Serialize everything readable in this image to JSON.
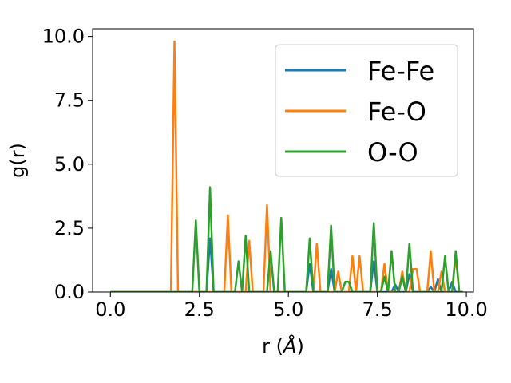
{
  "chart_data": {
    "type": "line",
    "xlabel": "r ($\\AA$)",
    "xlabel_parts": {
      "prefix": "r (",
      "symbol": "Å",
      "suffix": ")"
    },
    "ylabel": "g(r)",
    "xlim": [
      -0.5,
      10.2
    ],
    "ylim": [
      0,
      10.3
    ],
    "xticks": [
      0.0,
      2.5,
      5.0,
      7.5,
      10.0
    ],
    "xtick_labels": [
      "0.0",
      "2.5",
      "5.0",
      "7.5",
      "10.0"
    ],
    "yticks": [
      0.0,
      2.5,
      5.0,
      7.5,
      10.0
    ],
    "ytick_labels": [
      "0.0",
      "2.5",
      "5.0",
      "7.5",
      "10.0"
    ],
    "grid": false,
    "legend_position": "top-right",
    "x": [
      0.0,
      0.1,
      0.2,
      0.3,
      0.4,
      0.5,
      0.6,
      0.7,
      0.8,
      0.9,
      1.0,
      1.1,
      1.2,
      1.3,
      1.4,
      1.5,
      1.6,
      1.7,
      1.8,
      1.9,
      2.0,
      2.1,
      2.2,
      2.3,
      2.4,
      2.5,
      2.6,
      2.7,
      2.8,
      2.9,
      3.0,
      3.1,
      3.2,
      3.3,
      3.4,
      3.5,
      3.6,
      3.7,
      3.8,
      3.9,
      4.0,
      4.1,
      4.2,
      4.3,
      4.4,
      4.5,
      4.6,
      4.7,
      4.8,
      4.9,
      5.0,
      5.1,
      5.2,
      5.3,
      5.4,
      5.5,
      5.6,
      5.7,
      5.8,
      5.9,
      6.0,
      6.1,
      6.2,
      6.3,
      6.4,
      6.5,
      6.6,
      6.7,
      6.8,
      6.9,
      7.0,
      7.1,
      7.2,
      7.3,
      7.4,
      7.5,
      7.6,
      7.7,
      7.8,
      7.9,
      8.0,
      8.1,
      8.2,
      8.3,
      8.4,
      8.5,
      8.6,
      8.7,
      8.8,
      8.9,
      9.0,
      9.1,
      9.2,
      9.3,
      9.4,
      9.5,
      9.6,
      9.7,
      9.8,
      9.9
    ],
    "series": [
      {
        "name": "Fe-Fe",
        "color": "#1f77b4",
        "values": [
          0,
          0,
          0,
          0,
          0,
          0,
          0,
          0,
          0,
          0,
          0,
          0,
          0,
          0,
          0,
          0,
          0,
          0,
          0,
          0,
          0,
          0,
          0,
          0,
          0,
          0,
          0,
          0,
          2.1,
          0,
          0,
          0,
          0,
          0,
          0,
          0,
          0,
          0,
          0,
          0,
          0,
          0,
          0,
          0,
          0,
          0,
          0,
          0,
          0,
          0,
          0,
          0,
          0,
          0,
          0,
          0,
          1.1,
          0,
          0,
          0,
          0,
          0,
          0.9,
          0,
          0,
          0,
          0,
          0,
          0,
          0,
          0,
          0,
          0,
          0,
          1.2,
          0,
          0,
          0,
          0,
          0,
          0.3,
          0,
          0,
          0,
          0.7,
          0,
          0,
          0,
          0,
          0,
          0.2,
          0,
          0.5,
          0,
          0,
          0,
          0.4,
          0,
          0,
          0
        ]
      },
      {
        "name": "Fe-O",
        "color": "#ff7f0e",
        "values": [
          0,
          0,
          0,
          0,
          0,
          0,
          0,
          0,
          0,
          0,
          0,
          0,
          0,
          0,
          0,
          0,
          0,
          0,
          9.8,
          0,
          0,
          0,
          0,
          0,
          0,
          0,
          0,
          0,
          0,
          0,
          0,
          0,
          0,
          3.0,
          0,
          0,
          0,
          0,
          0,
          2.0,
          0,
          0,
          0,
          0,
          3.4,
          0,
          0,
          0,
          0,
          0,
          0,
          0,
          0,
          0,
          0,
          0,
          0,
          0,
          1.9,
          0,
          0,
          0,
          0,
          0,
          0.8,
          0,
          0,
          0,
          1.4,
          0,
          1.4,
          0,
          0,
          0,
          0,
          0,
          0,
          1.1,
          0,
          0,
          0,
          0,
          0.8,
          0,
          0,
          0.9,
          0.9,
          0,
          0,
          0,
          1.6,
          0,
          0,
          0.8,
          0,
          0,
          0,
          1.4,
          0,
          0
        ]
      },
      {
        "name": "O-O",
        "color": "#2ca02c",
        "values": [
          0,
          0,
          0,
          0,
          0,
          0,
          0,
          0,
          0,
          0,
          0,
          0,
          0,
          0,
          0,
          0,
          0,
          0,
          0,
          0,
          0,
          0,
          0,
          0,
          2.8,
          0,
          0,
          0,
          4.1,
          0,
          0,
          0,
          0,
          0,
          0,
          0,
          1.2,
          0,
          2.2,
          0,
          0,
          0,
          0,
          0,
          0,
          1.6,
          0,
          0,
          2.9,
          0,
          0,
          0,
          0,
          0,
          0,
          0,
          2.1,
          0,
          0,
          0,
          0,
          0,
          2.6,
          0,
          0,
          0,
          0.4,
          0.4,
          0,
          0,
          0,
          0,
          0,
          0,
          2.7,
          0,
          0,
          0.6,
          0,
          1.6,
          0,
          0,
          0.6,
          0,
          1.9,
          0,
          0,
          0,
          0,
          0,
          0,
          0,
          0,
          0,
          1.4,
          0,
          0,
          1.6,
          0,
          0
        ]
      }
    ]
  }
}
